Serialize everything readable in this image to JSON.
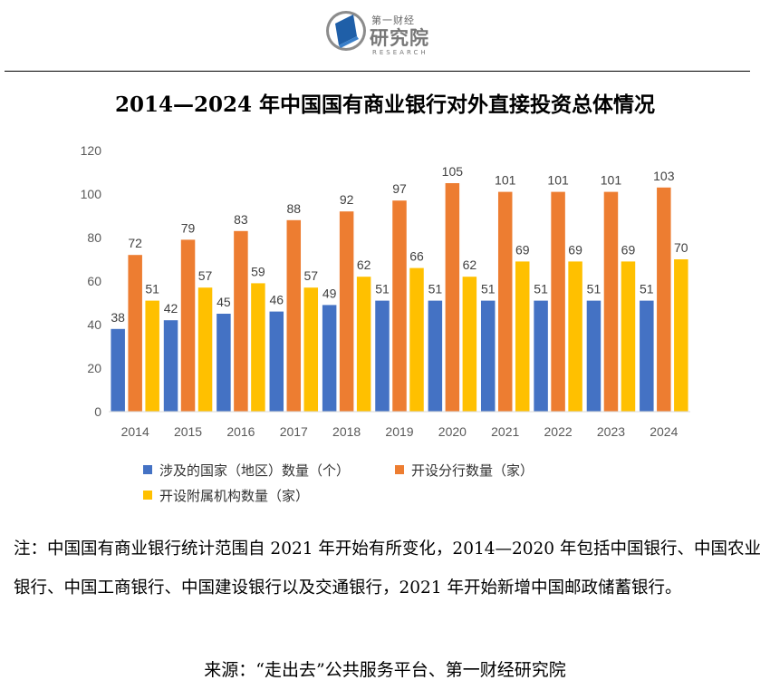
{
  "header": {
    "logo": {
      "small_text": "第一财经",
      "big_text": "研究院",
      "sub_text": "RESEARCH"
    }
  },
  "colors": {
    "series_blue": "#4472C4",
    "series_orange": "#ED7D31",
    "series_gold": "#FFC000",
    "axis": "#D9D9D9",
    "tick_text": "#595959"
  },
  "chart_data": {
    "type": "bar",
    "title": "2014—2024 年中国国有商业银行对外直接投资总体情况",
    "categories": [
      "2014",
      "2015",
      "2016",
      "2017",
      "2018",
      "2019",
      "2020",
      "2021",
      "2022",
      "2023",
      "2024"
    ],
    "series": [
      {
        "name": "涉及的国家（地区）数量（个）",
        "values": [
          38,
          42,
          45,
          46,
          49,
          51,
          51,
          51,
          51,
          51,
          51
        ]
      },
      {
        "name": "开设分行数量（家）",
        "values": [
          72,
          79,
          83,
          88,
          92,
          97,
          105,
          101,
          101,
          101,
          103
        ]
      },
      {
        "name": "开设附属机构数量（家）",
        "values": [
          51,
          57,
          59,
          57,
          62,
          66,
          62,
          69,
          69,
          69,
          70
        ]
      }
    ],
    "yticks": [
      0,
      20,
      40,
      60,
      80,
      100,
      120
    ],
    "ylim": [
      0,
      120
    ],
    "xlabel": "",
    "ylabel": "",
    "grid": false,
    "legend_position": "bottom"
  },
  "note": "注：中国国有商业银行统计范围自 2021 年开始有所变化，2014—2020 年包括中国银行、中国农业银行、中国工商银行、中国建设银行以及交通银行，2021 年开始新增中国邮政储蓄银行。",
  "source": "来源：“走出去”公共服务平台、第一财经研究院"
}
